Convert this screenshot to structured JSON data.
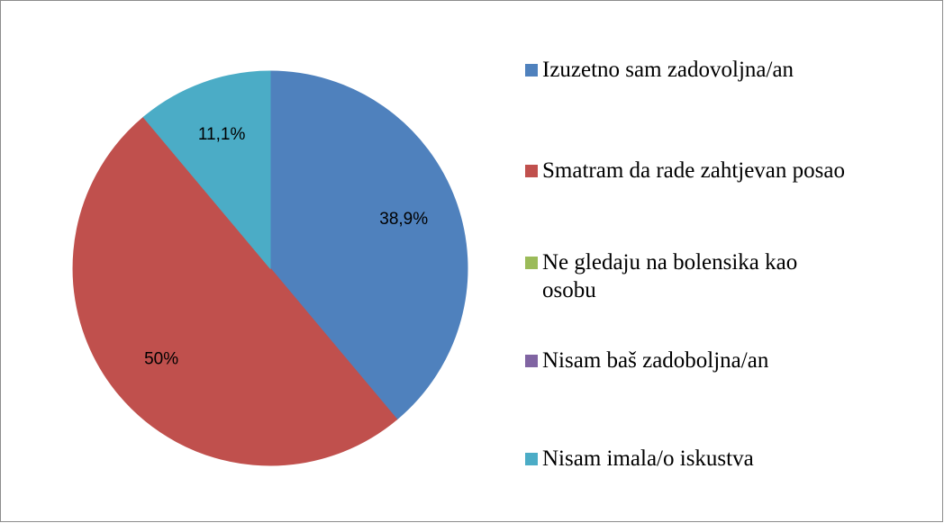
{
  "chart_data": {
    "type": "pie",
    "categories": [
      "Izuzetno sam zadovoljna/an",
      "Smatram da rade zahtjevan posao",
      "Ne gledaju na bolensika kao osobu",
      "Nisam baš zadoboljna/an",
      "Nisam imala/o iskustva"
    ],
    "values": [
      38.9,
      50,
      0,
      0,
      11.1
    ],
    "value_labels": [
      "38,9%",
      "50%",
      null,
      null,
      "11,1%"
    ],
    "colors": [
      "#4f81bd",
      "#c0504d",
      "#9bbb59",
      "#8064a2",
      "#4bacc6"
    ],
    "legend": "right"
  }
}
